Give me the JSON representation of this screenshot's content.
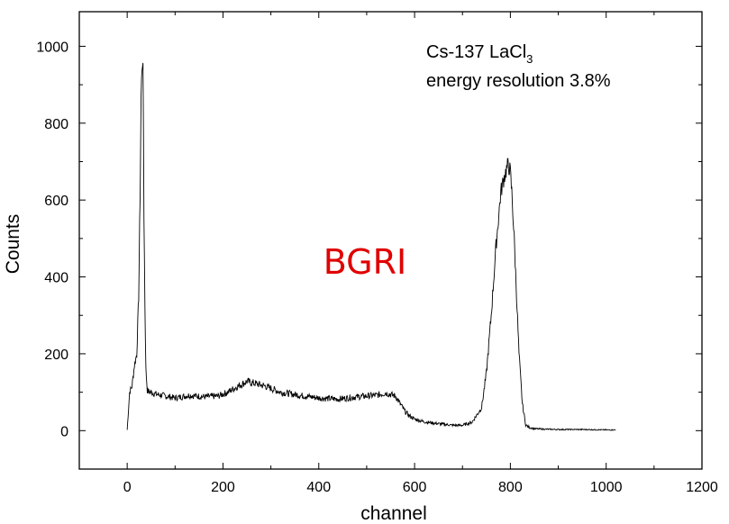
{
  "chart_data": {
    "type": "line",
    "title": "",
    "xlabel": "channel",
    "ylabel": "Counts",
    "xlim": [
      -100,
      1200
    ],
    "ylim": [
      -100,
      1090
    ],
    "x_ticks": [
      0,
      200,
      400,
      600,
      800,
      1000,
      1200
    ],
    "y_ticks": [
      0,
      200,
      400,
      600,
      800,
      1000
    ],
    "x_tick_labels": [
      "0",
      "200",
      "400",
      "600",
      "800",
      "1000",
      "1200"
    ],
    "y_tick_labels": [
      "0",
      "200",
      "400",
      "600",
      "800",
      "1000"
    ],
    "grid": false,
    "legend": "none",
    "line_color": "#000000",
    "annotation": {
      "line1_main": "Cs-137 LaCl",
      "line1_sub": "3",
      "line2": "energy resolution 3.8%"
    },
    "watermark": {
      "text": "BGRI",
      "color": "#e00000"
    },
    "series": [
      {
        "x": [
          0,
          5,
          10,
          15,
          20,
          24,
          27,
          29,
          31,
          32,
          33,
          34,
          35,
          37,
          39,
          42,
          46,
          50,
          60,
          80,
          100,
          130,
          160,
          190,
          210,
          230,
          250,
          270,
          290,
          320,
          360,
          400,
          440,
          480,
          520,
          540,
          560,
          570,
          580,
          590,
          600,
          620,
          650,
          680,
          700,
          720,
          740,
          750,
          760,
          770,
          780,
          787,
          792,
          795,
          798,
          800,
          803,
          808,
          812,
          818,
          825,
          832,
          840,
          850,
          870,
          900,
          950,
          1000,
          1020
        ],
        "y": [
          2,
          100,
          115,
          170,
          200,
          350,
          620,
          870,
          950,
          965,
          930,
          780,
          560,
          330,
          160,
          105,
          100,
          100,
          95,
          90,
          85,
          92,
          88,
          90,
          100,
          115,
          128,
          122,
          115,
          100,
          92,
          85,
          82,
          88,
          92,
          98,
          90,
          70,
          50,
          38,
          30,
          23,
          18,
          14,
          14,
          22,
          60,
          150,
          300,
          480,
          620,
          660,
          680,
          690,
          685,
          670,
          620,
          500,
          380,
          200,
          70,
          15,
          8,
          5,
          4,
          3,
          3,
          2,
          2
        ]
      }
    ]
  }
}
